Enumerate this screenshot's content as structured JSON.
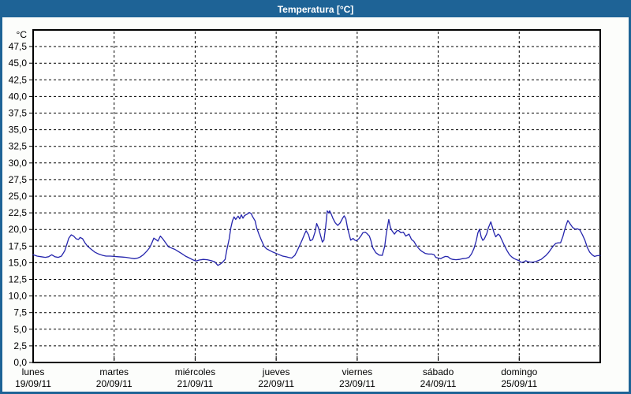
{
  "title": "Temperatura [°C]",
  "colors": {
    "titlebar_bg": "#1e6396",
    "titlebar_text": "#ffffff",
    "window_bg": "#fcfdfb",
    "plot_bg": "#ffffff",
    "grid": "#000000",
    "axis_border": "#000000",
    "line": "#2424ac"
  },
  "chart_data": {
    "type": "line",
    "title": "Temperatura [°C]",
    "y_unit_label": "°C",
    "y_min": 0,
    "y_max": 50,
    "y_tick_step": 2.5,
    "y_tick_labels": [
      "0,0",
      "2,5",
      "5,0",
      "7,5",
      "10,0",
      "12,5",
      "15,0",
      "17,5",
      "20,0",
      "22,5",
      "25,0",
      "27,5",
      "30,0",
      "32,5",
      "35,0",
      "37,5",
      "40,0",
      "42,5",
      "45,0",
      "47,5"
    ],
    "x_unit": "days_from_start",
    "x_range_days": [
      0,
      7
    ],
    "grid": "dashed",
    "legend": "none",
    "x_days": [
      {
        "name": "lunes",
        "date": "19/09/11"
      },
      {
        "name": "martes",
        "date": "20/09/11"
      },
      {
        "name": "miércoles",
        "date": "21/09/11"
      },
      {
        "name": "jueves",
        "date": "22/09/11"
      },
      {
        "name": "viernes",
        "date": "23/09/11"
      },
      {
        "name": "sábado",
        "date": "24/09/11"
      },
      {
        "name": "domingo",
        "date": "25/09/11"
      }
    ],
    "series": [
      {
        "name": "Temperatura",
        "color": "#2424ac",
        "points": [
          [
            0.0,
            16.2
          ],
          [
            0.05,
            16.0
          ],
          [
            0.1,
            15.9
          ],
          [
            0.15,
            15.8
          ],
          [
            0.19,
            15.9
          ],
          [
            0.23,
            16.2
          ],
          [
            0.27,
            15.9
          ],
          [
            0.31,
            15.8
          ],
          [
            0.35,
            16.0
          ],
          [
            0.39,
            16.8
          ],
          [
            0.42,
            17.9
          ],
          [
            0.44,
            18.7
          ],
          [
            0.47,
            19.2
          ],
          [
            0.5,
            19.0
          ],
          [
            0.53,
            18.6
          ],
          [
            0.56,
            18.5
          ],
          [
            0.58,
            18.8
          ],
          [
            0.61,
            18.6
          ],
          [
            0.64,
            18.0
          ],
          [
            0.67,
            17.5
          ],
          [
            0.71,
            17.1
          ],
          [
            0.76,
            16.6
          ],
          [
            0.81,
            16.3
          ],
          [
            0.86,
            16.1
          ],
          [
            0.9,
            16.0
          ],
          [
            0.95,
            16.0
          ],
          [
            1.0,
            15.95
          ],
          [
            1.05,
            15.9
          ],
          [
            1.1,
            15.85
          ],
          [
            1.15,
            15.8
          ],
          [
            1.2,
            15.7
          ],
          [
            1.25,
            15.6
          ],
          [
            1.29,
            15.7
          ],
          [
            1.32,
            15.85
          ],
          [
            1.36,
            16.2
          ],
          [
            1.4,
            16.7
          ],
          [
            1.44,
            17.3
          ],
          [
            1.47,
            18.1
          ],
          [
            1.49,
            18.7
          ],
          [
            1.52,
            18.45
          ],
          [
            1.54,
            18.25
          ],
          [
            1.57,
            19.0
          ],
          [
            1.6,
            18.6
          ],
          [
            1.64,
            17.9
          ],
          [
            1.67,
            17.4
          ],
          [
            1.71,
            17.2
          ],
          [
            1.75,
            17.0
          ],
          [
            1.79,
            16.7
          ],
          [
            1.83,
            16.4
          ],
          [
            1.88,
            16.0
          ],
          [
            1.93,
            15.7
          ],
          [
            1.97,
            15.45
          ],
          [
            2.01,
            15.25
          ],
          [
            2.05,
            15.4
          ],
          [
            2.1,
            15.5
          ],
          [
            2.15,
            15.45
          ],
          [
            2.2,
            15.3
          ],
          [
            2.24,
            15.15
          ],
          [
            2.28,
            14.6
          ],
          [
            2.31,
            14.8
          ],
          [
            2.34,
            15.1
          ],
          [
            2.37,
            15.5
          ],
          [
            2.39,
            16.9
          ],
          [
            2.42,
            18.6
          ],
          [
            2.44,
            20.2
          ],
          [
            2.46,
            21.3
          ],
          [
            2.48,
            21.9
          ],
          [
            2.5,
            21.5
          ],
          [
            2.53,
            22.0
          ],
          [
            2.55,
            21.6
          ],
          [
            2.57,
            22.2
          ],
          [
            2.59,
            21.7
          ],
          [
            2.61,
            22.1
          ],
          [
            2.64,
            22.3
          ],
          [
            2.67,
            22.55
          ],
          [
            2.69,
            22.4
          ],
          [
            2.71,
            21.9
          ],
          [
            2.74,
            21.3
          ],
          [
            2.76,
            20.2
          ],
          [
            2.79,
            19.2
          ],
          [
            2.82,
            18.3
          ],
          [
            2.85,
            17.5
          ],
          [
            2.88,
            17.1
          ],
          [
            2.92,
            16.85
          ],
          [
            2.96,
            16.6
          ],
          [
            2.99,
            16.45
          ],
          [
            3.04,
            16.2
          ],
          [
            3.08,
            16.0
          ],
          [
            3.12,
            15.9
          ],
          [
            3.15,
            15.8
          ],
          [
            3.19,
            15.7
          ],
          [
            3.23,
            16.1
          ],
          [
            3.26,
            16.8
          ],
          [
            3.29,
            17.6
          ],
          [
            3.32,
            18.4
          ],
          [
            3.35,
            19.3
          ],
          [
            3.37,
            19.8
          ],
          [
            3.4,
            19.2
          ],
          [
            3.42,
            18.3
          ],
          [
            3.45,
            18.5
          ],
          [
            3.48,
            19.6
          ],
          [
            3.5,
            20.9
          ],
          [
            3.52,
            20.3
          ],
          [
            3.55,
            19.0
          ],
          [
            3.57,
            18.1
          ],
          [
            3.59,
            18.4
          ],
          [
            3.61,
            20.3
          ],
          [
            3.63,
            22.8
          ],
          [
            3.65,
            22.5
          ],
          [
            3.66,
            22.8
          ],
          [
            3.68,
            22.3
          ],
          [
            3.7,
            21.7
          ],
          [
            3.73,
            21.0
          ],
          [
            3.76,
            20.6
          ],
          [
            3.79,
            21.0
          ],
          [
            3.82,
            21.7
          ],
          [
            3.84,
            22.05
          ],
          [
            3.86,
            21.6
          ],
          [
            3.88,
            20.3
          ],
          [
            3.9,
            19.3
          ],
          [
            3.92,
            18.4
          ],
          [
            3.95,
            18.65
          ],
          [
            3.97,
            18.4
          ],
          [
            3.99,
            18.3
          ],
          [
            4.02,
            18.6
          ],
          [
            4.05,
            19.1
          ],
          [
            4.07,
            19.5
          ],
          [
            4.1,
            19.6
          ],
          [
            4.12,
            19.4
          ],
          [
            4.15,
            19.0
          ],
          [
            4.17,
            18.3
          ],
          [
            4.19,
            17.3
          ],
          [
            4.23,
            16.5
          ],
          [
            4.27,
            16.15
          ],
          [
            4.31,
            16.1
          ],
          [
            4.34,
            17.5
          ],
          [
            4.36,
            19.4
          ],
          [
            4.39,
            21.5
          ],
          [
            4.41,
            20.3
          ],
          [
            4.43,
            19.8
          ],
          [
            4.46,
            19.3
          ],
          [
            4.49,
            19.8
          ],
          [
            4.51,
            19.85
          ],
          [
            4.54,
            19.5
          ],
          [
            4.57,
            19.6
          ],
          [
            4.6,
            19.0
          ],
          [
            4.64,
            19.3
          ],
          [
            4.67,
            18.5
          ],
          [
            4.7,
            18.2
          ],
          [
            4.73,
            17.6
          ],
          [
            4.77,
            17.0
          ],
          [
            4.8,
            16.7
          ],
          [
            4.84,
            16.4
          ],
          [
            4.88,
            16.3
          ],
          [
            4.92,
            16.3
          ],
          [
            4.95,
            16.2
          ],
          [
            4.97,
            15.8
          ],
          [
            5.0,
            15.7
          ],
          [
            5.03,
            15.6
          ],
          [
            5.06,
            15.8
          ],
          [
            5.09,
            15.95
          ],
          [
            5.12,
            15.9
          ],
          [
            5.15,
            15.6
          ],
          [
            5.18,
            15.5
          ],
          [
            5.22,
            15.45
          ],
          [
            5.26,
            15.5
          ],
          [
            5.3,
            15.6
          ],
          [
            5.34,
            15.65
          ],
          [
            5.38,
            15.8
          ],
          [
            5.41,
            16.3
          ],
          [
            5.44,
            17.1
          ],
          [
            5.47,
            18.3
          ],
          [
            5.49,
            19.5
          ],
          [
            5.51,
            20.05
          ],
          [
            5.53,
            18.9
          ],
          [
            5.55,
            18.35
          ],
          [
            5.57,
            18.6
          ],
          [
            5.6,
            19.4
          ],
          [
            5.62,
            20.3
          ],
          [
            5.65,
            21.15
          ],
          [
            5.67,
            20.3
          ],
          [
            5.69,
            19.5
          ],
          [
            5.71,
            18.9
          ],
          [
            5.74,
            19.3
          ],
          [
            5.76,
            19.1
          ],
          [
            5.79,
            18.3
          ],
          [
            5.82,
            17.5
          ],
          [
            5.85,
            16.8
          ],
          [
            5.88,
            16.2
          ],
          [
            5.91,
            15.85
          ],
          [
            5.94,
            15.6
          ],
          [
            5.97,
            15.45
          ],
          [
            6.0,
            15.3
          ],
          [
            6.02,
            15.05
          ],
          [
            6.05,
            15.1
          ],
          [
            6.08,
            15.3
          ],
          [
            6.11,
            15.15
          ],
          [
            6.14,
            15.1
          ],
          [
            6.17,
            15.1
          ],
          [
            6.2,
            15.15
          ],
          [
            6.23,
            15.3
          ],
          [
            6.27,
            15.5
          ],
          [
            6.3,
            15.8
          ],
          [
            6.33,
            16.1
          ],
          [
            6.36,
            16.5
          ],
          [
            6.39,
            17.0
          ],
          [
            6.42,
            17.5
          ],
          [
            6.45,
            17.9
          ],
          [
            6.48,
            18.0
          ],
          [
            6.51,
            18.0
          ],
          [
            6.54,
            19.0
          ],
          [
            6.56,
            19.9
          ],
          [
            6.58,
            20.7
          ],
          [
            6.6,
            21.35
          ],
          [
            6.63,
            20.8
          ],
          [
            6.66,
            20.3
          ],
          [
            6.69,
            20.05
          ],
          [
            6.72,
            20.1
          ],
          [
            6.75,
            19.9
          ],
          [
            6.78,
            19.2
          ],
          [
            6.81,
            18.4
          ],
          [
            6.84,
            17.3
          ],
          [
            6.87,
            16.6
          ],
          [
            6.9,
            16.2
          ],
          [
            6.93,
            15.95
          ],
          [
            6.96,
            16.05
          ],
          [
            7.0,
            16.1
          ]
        ]
      }
    ]
  }
}
